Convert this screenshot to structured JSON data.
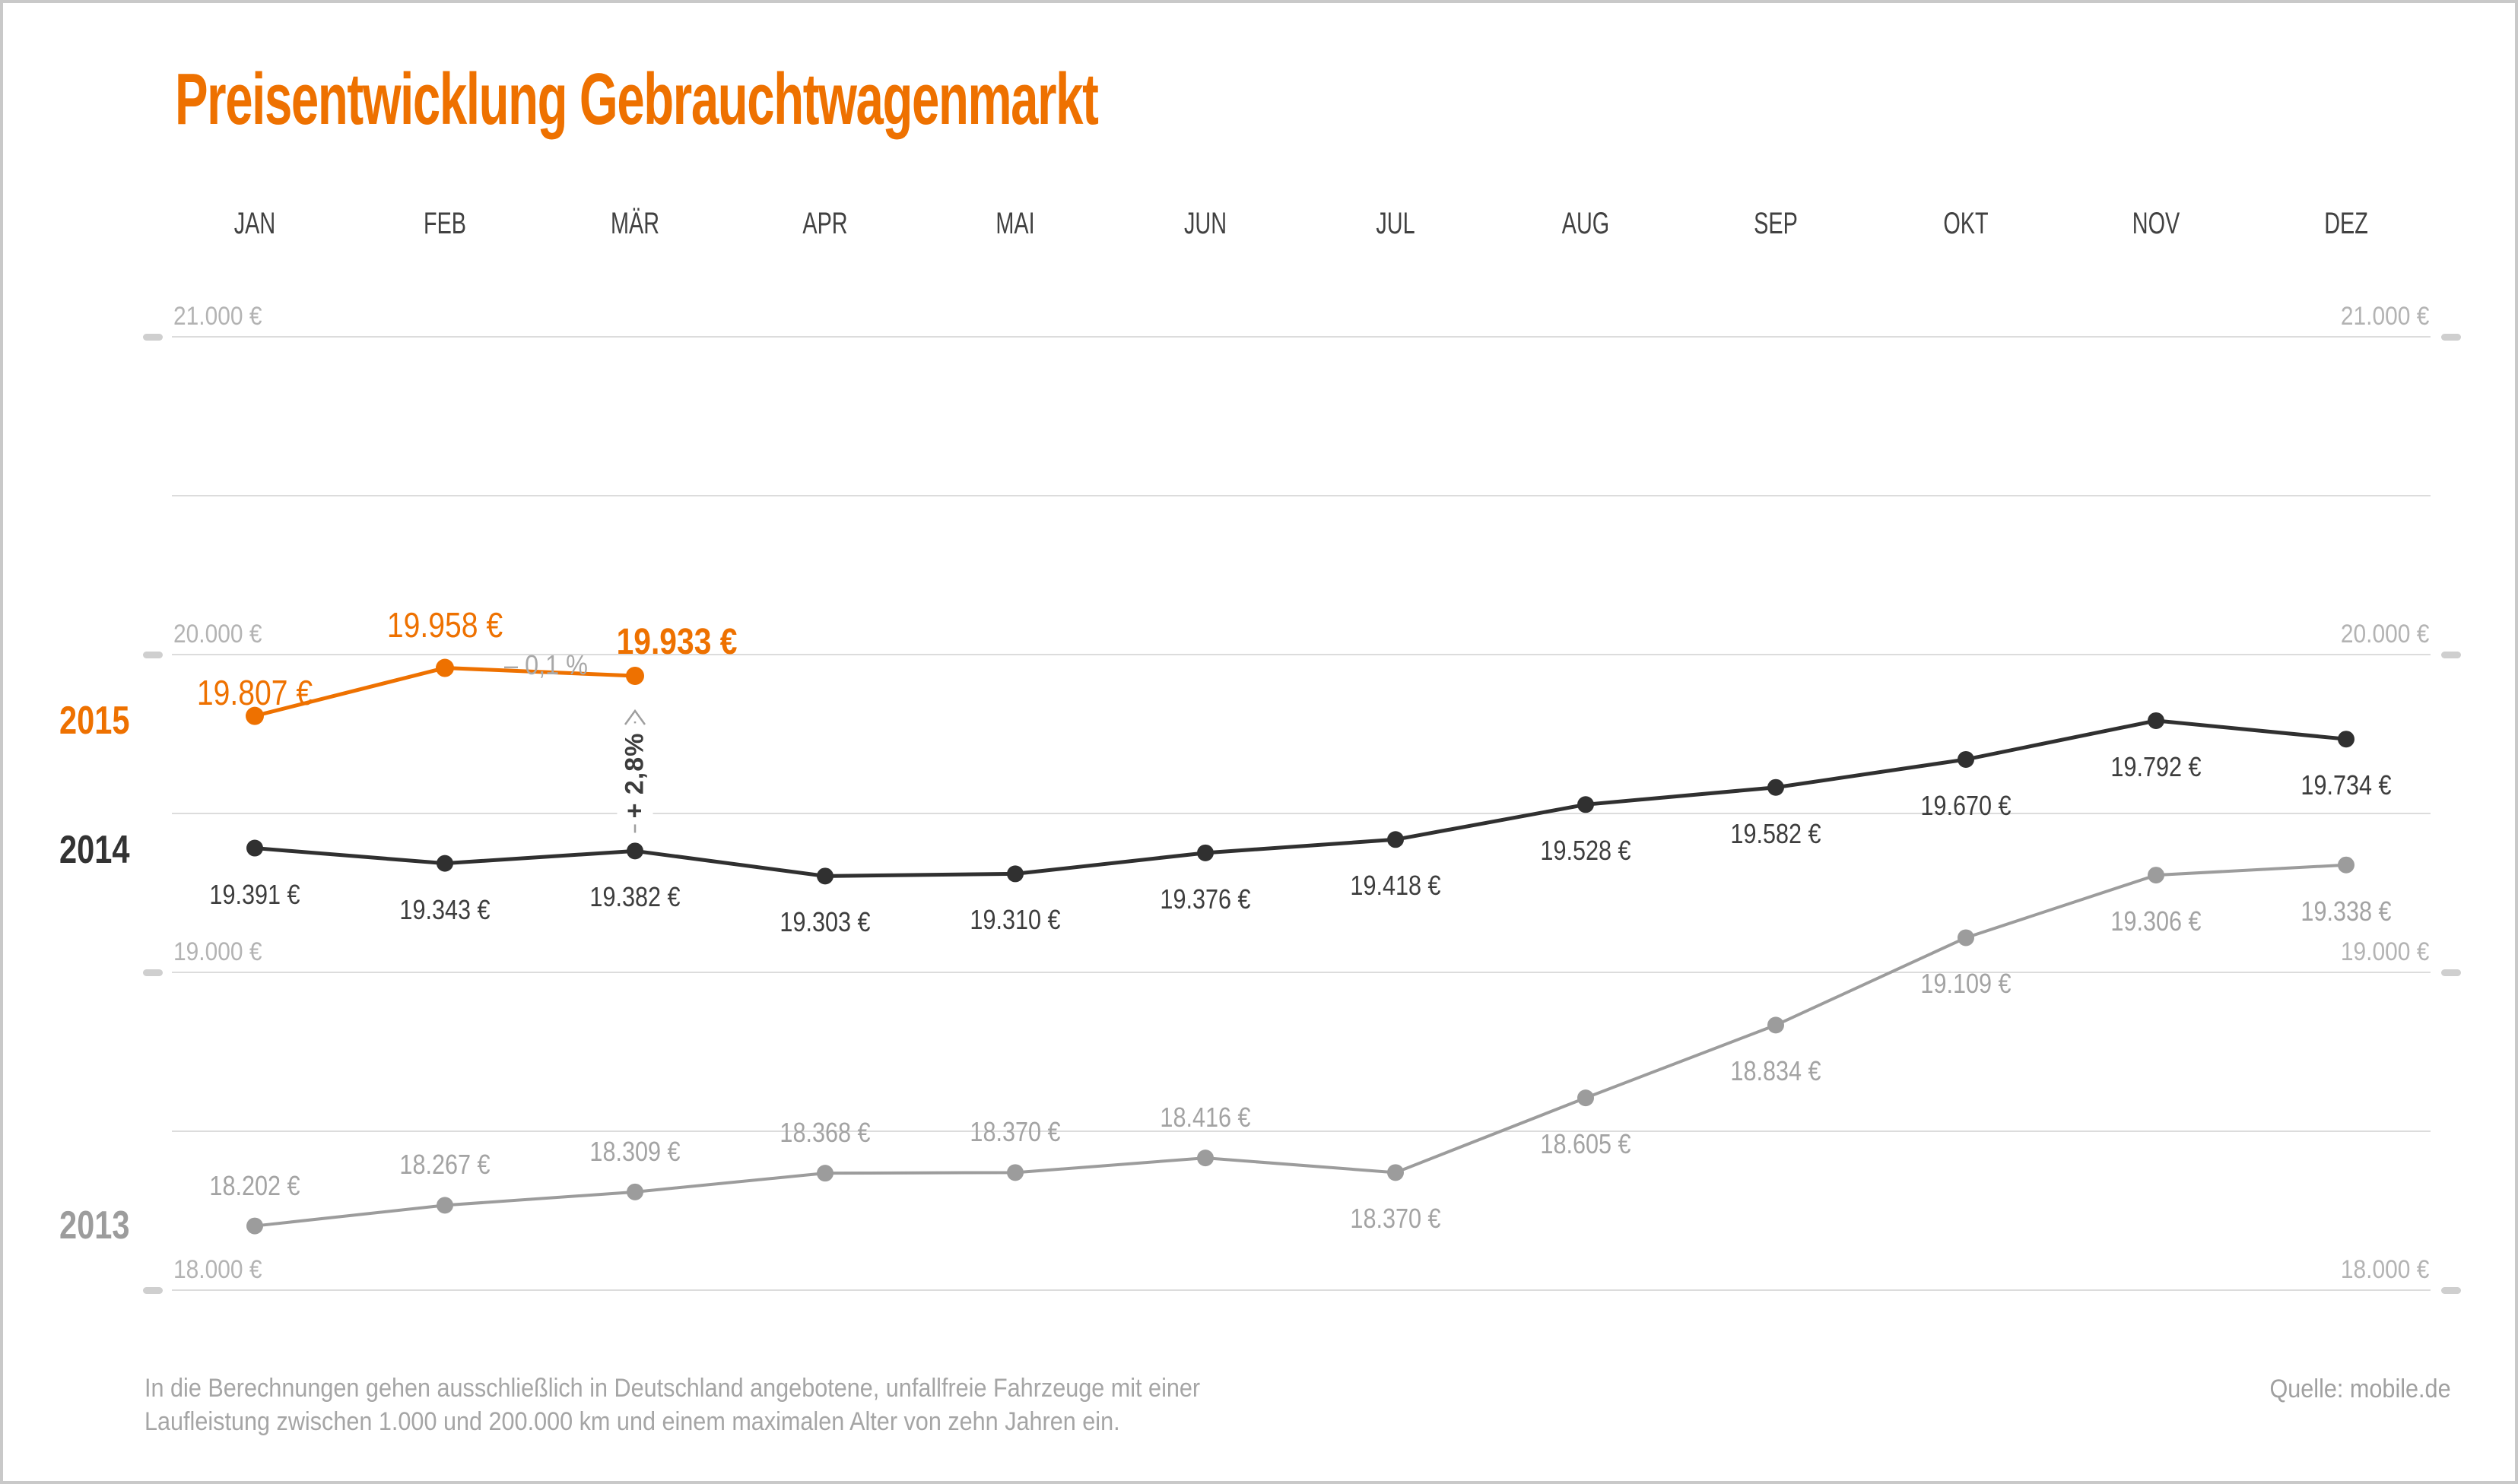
{
  "page": {
    "title": "Preisentwicklung Gebrauchtwagenmarkt",
    "accent_color": "#ee7100",
    "frame_color": "#c9c9c9"
  },
  "chart_data": {
    "type": "line",
    "title": "Preisentwicklung Gebrauchtwagenmarkt",
    "categories": [
      "JAN",
      "FEB",
      "MÄR",
      "APR",
      "MAI",
      "JUN",
      "JUL",
      "AUG",
      "SEP",
      "OKT",
      "NOV",
      "DEZ"
    ],
    "unit": "€",
    "ylim": [
      18000,
      21000
    ],
    "ytick_minor_step": 500,
    "ytick_labeled_values": [
      21000,
      20000,
      19000,
      18000
    ],
    "grid": true,
    "axis_label_format": "#.### €",
    "legend_position": "left-of-series-start",
    "series": [
      {
        "name": "2013",
        "color": "#9c9c9c",
        "label_color": "#a3a3a3",
        "values": [
          18202,
          18267,
          18309,
          18368,
          18370,
          18416,
          18370,
          18605,
          18834,
          19109,
          19306,
          19338
        ],
        "label_side": [
          "above",
          "above",
          "above",
          "above",
          "above",
          "above",
          "below",
          "below",
          "below",
          "below",
          "below",
          "below"
        ]
      },
      {
        "name": "2014",
        "color": "#303030",
        "label_color": "#3d3d3d",
        "values": [
          19391,
          19343,
          19382,
          19303,
          19310,
          19376,
          19418,
          19528,
          19582,
          19670,
          19792,
          19734
        ],
        "label_side": [
          "below",
          "below",
          "below",
          "below",
          "below",
          "below",
          "below",
          "below",
          "below",
          "below",
          "below",
          "below"
        ]
      },
      {
        "name": "2015",
        "color": "#ee7100",
        "label_color": "#ee7100",
        "values": [
          19807,
          19958,
          19933
        ],
        "label_side": [
          "above",
          "above",
          "above"
        ],
        "label_offsets": [
          [
            0,
            -33
          ],
          [
            0,
            -59
          ],
          [
            55,
            -46
          ]
        ],
        "bold_label_index": 2
      }
    ],
    "annotations": [
      {
        "id": "change-feb-mar",
        "text": "– 0,1 %",
        "type": "text",
        "between_months": [
          "FEB",
          "MÄR"
        ],
        "color": "#a8a8a8"
      },
      {
        "id": "change-2014-2015-mar",
        "text": "+ 2,8%",
        "type": "vertical-arrow",
        "month": "MÄR",
        "from_series": "2014",
        "to_series": "2015",
        "text_color": "#3c3c3c",
        "arrow_color": "#9e9e9e"
      }
    ]
  },
  "footer": {
    "line1": "In die Berechnungen gehen ausschließlich in Deutschland angebotene, unfallfreie Fahrzeuge mit einer",
    "line2": "Laufleistung zwischen 1.000 und 200.000 km und einem maximalen Alter von zehn Jahren ein.",
    "source": "Quelle: mobile.de"
  }
}
